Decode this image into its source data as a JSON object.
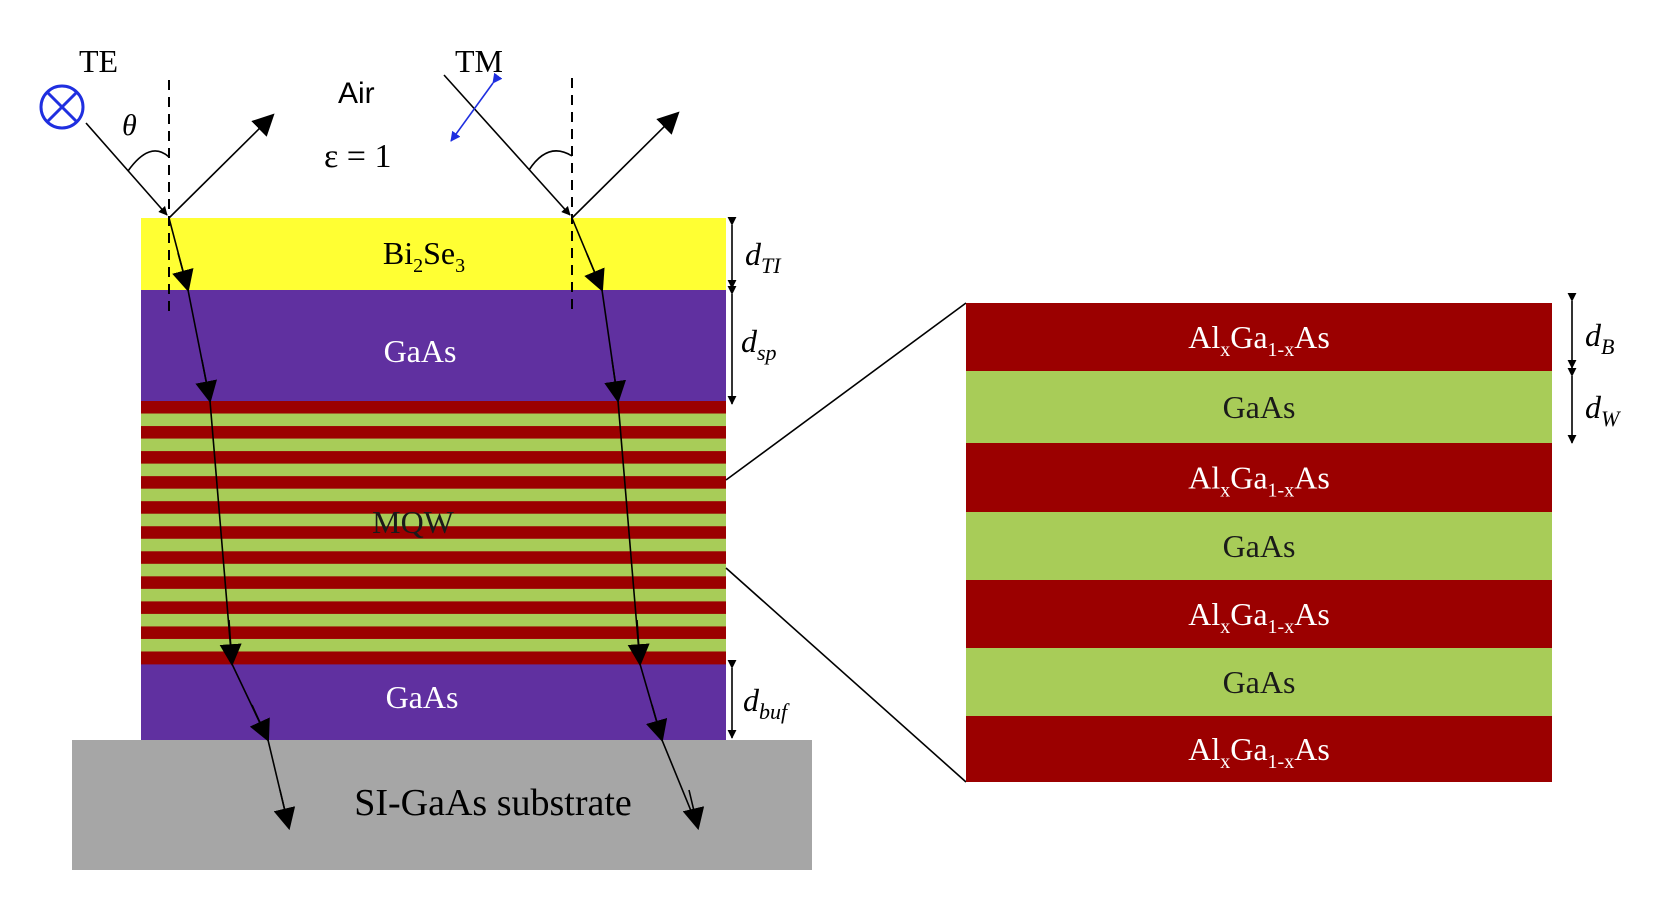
{
  "labels": {
    "te": "TE",
    "tm": "TM",
    "air": "Air",
    "theta": "θ",
    "epsilon": "ε = 1",
    "ti_layer": {
      "base": "Bi",
      "sub1": "2",
      "mid": "Se",
      "sub2": "3"
    },
    "spacer": "GaAs",
    "mqw": "MQW",
    "buffer": "GaAs",
    "substrate": "SI-GaAs substrate",
    "d_ti": {
      "base": "d",
      "sub": "TI"
    },
    "d_sp": {
      "base": "d",
      "sub": "sp"
    },
    "d_buf": {
      "base": "d",
      "sub": "buf"
    },
    "d_b": {
      "base": "d",
      "sub": "B"
    },
    "d_w": {
      "base": "d",
      "sub": "W"
    }
  },
  "zoom_layers": [
    {
      "kind": "barrier",
      "base1": "Al",
      "sub1": "x",
      "base2": "Ga",
      "sub2": "1-x",
      "base3": "As"
    },
    {
      "kind": "well",
      "text": "GaAs"
    },
    {
      "kind": "barrier",
      "base1": "Al",
      "sub1": "x",
      "base2": "Ga",
      "sub2": "1-x",
      "base3": "As"
    },
    {
      "kind": "well",
      "text": "GaAs"
    },
    {
      "kind": "barrier",
      "base1": "Al",
      "sub1": "x",
      "base2": "Ga",
      "sub2": "1-x",
      "base3": "As"
    },
    {
      "kind": "well",
      "text": "GaAs"
    },
    {
      "kind": "barrier",
      "base1": "Al",
      "sub1": "x",
      "base2": "Ga",
      "sub2": "1-x",
      "base3": "As"
    }
  ],
  "colors": {
    "ti": "#ffff33",
    "gaas": "#6030a0",
    "barrier": "#9b0000",
    "well": "#a8cc58",
    "substrate": "#a6a6a6",
    "te_symbol": "#1f2fe0",
    "tm_polarization": "#1f2fe0"
  }
}
